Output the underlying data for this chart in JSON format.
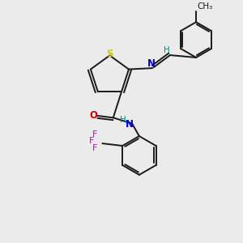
{
  "bg_color": "#ebebeb",
  "bond_color": "#1a1a1a",
  "S_color": "#cccc00",
  "N_color": "#0000cc",
  "O_color": "#cc0000",
  "F_color": "#cc00cc",
  "H_color": "#008888",
  "figsize": [
    3.0,
    3.0
  ],
  "dpi": 100,
  "xlim": [
    0,
    10
  ],
  "ylim": [
    0,
    10
  ]
}
